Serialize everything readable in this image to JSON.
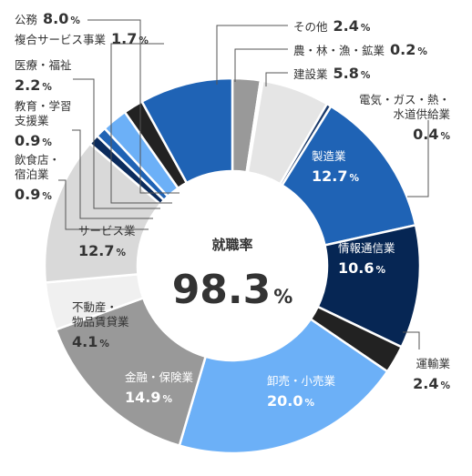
{
  "chart_data": {
    "type": "pie",
    "center": {
      "title": "就職率",
      "value": "98.3",
      "unit": "%"
    },
    "unit": "%",
    "slices": [
      {
        "label": "その他",
        "value": 2.4,
        "color": "#999999"
      },
      {
        "label": "農・林・漁・鉱業",
        "value": 0.2,
        "color": "#bbbbbb"
      },
      {
        "label": "建設業",
        "value": 5.8,
        "color": "#e5e5e5"
      },
      {
        "label": "電気・ガス・熱・水道供給業",
        "value": 0.4,
        "color": "#1a3a6b"
      },
      {
        "label": "製造業",
        "value": 12.7,
        "color": "#1f63b5"
      },
      {
        "label": "情報通信業",
        "value": 10.6,
        "color": "#062654"
      },
      {
        "label": "運輸業",
        "value": 2.4,
        "color": "#222222"
      },
      {
        "label": "卸売・小売業",
        "value": 20.0,
        "color": "#6cb0f7"
      },
      {
        "label": "金融・保険業",
        "value": 14.9,
        "color": "#999999"
      },
      {
        "label": "不動産・物品賃貸業",
        "value": 4.1,
        "color": "#f0f0f0"
      },
      {
        "label": "サービス業",
        "value": 12.7,
        "color": "#d9d9d9"
      },
      {
        "label": "飲食店・宿泊業",
        "value": 0.9,
        "color": "#0b2b5c"
      },
      {
        "label": "教育・学習支援業",
        "value": 0.9,
        "color": "#1f63b5"
      },
      {
        "label": "医療・福祉",
        "value": 2.2,
        "color": "#6cb0f7"
      },
      {
        "label": "複合サービス事業",
        "value": 1.7,
        "color": "#222222"
      },
      {
        "label": "公務",
        "value": 8.0,
        "color": "#1f63b5"
      }
    ]
  },
  "labels": {
    "other": {
      "lines": [
        "その他"
      ],
      "value": "2.4"
    },
    "agri": {
      "lines": [
        "農・林・漁・鉱業"
      ],
      "value": "0.2"
    },
    "constr": {
      "lines": [
        "建設業"
      ],
      "value": "5.8"
    },
    "utility": {
      "lines": [
        "電気・ガス・熱・",
        "水道供給業"
      ],
      "value": "0.4"
    },
    "mfg": {
      "lines": [
        "製造業"
      ],
      "value": "12.7"
    },
    "info": {
      "lines": [
        "情報通信業"
      ],
      "value": "10.6"
    },
    "transport": {
      "lines": [
        "運輸業"
      ],
      "value": "2.4"
    },
    "retail": {
      "lines": [
        "卸売・小売業"
      ],
      "value": "20.0"
    },
    "finance": {
      "lines": [
        "金融・保険業"
      ],
      "value": "14.9"
    },
    "realestate": {
      "lines": [
        "不動産・",
        "物品賃貸業"
      ],
      "value": "4.1"
    },
    "service": {
      "lines": [
        "サービス業"
      ],
      "value": "12.7"
    },
    "food": {
      "lines": [
        "飲食店・",
        "宿泊業"
      ],
      "value": "0.9"
    },
    "edu": {
      "lines": [
        "教育・学習",
        "支援業"
      ],
      "value": "0.9"
    },
    "medical": {
      "lines": [
        "医療・福祉"
      ],
      "value": "2.2"
    },
    "compound": {
      "lines": [
        "複合サービス事業"
      ],
      "value": "1.7"
    },
    "public": {
      "lines": [
        "公務"
      ],
      "value": "8.0"
    }
  }
}
